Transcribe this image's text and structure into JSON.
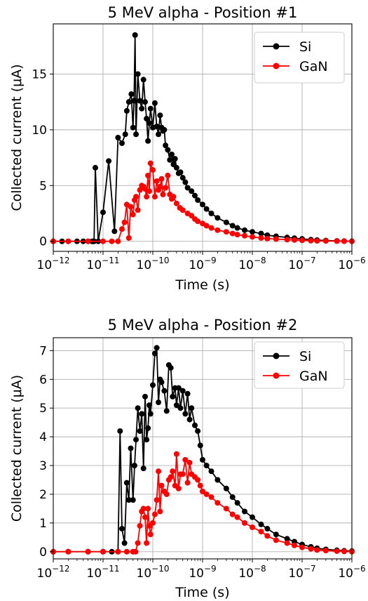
{
  "chart_data": [
    {
      "type": "line",
      "title": "5 MeV alpha - Position #1",
      "xlabel": "Time (s)",
      "ylabel": "Collected current (μA)",
      "xscale": "log",
      "xlim": [
        1e-12,
        1e-06
      ],
      "ylim": [
        -0.9,
        19.5
      ],
      "x_ticks": [
        {
          "base": "10",
          "exp": "−12"
        },
        {
          "base": "10",
          "exp": "−11"
        },
        {
          "base": "10",
          "exp": "−10"
        },
        {
          "base": "10",
          "exp": "−9"
        },
        {
          "base": "10",
          "exp": "−8"
        },
        {
          "base": "10",
          "exp": "−7"
        },
        {
          "base": "10",
          "exp": "−6"
        }
      ],
      "y_ticks": [
        "0",
        "5",
        "10",
        "15"
      ],
      "y_tick_values": [
        0,
        5,
        10,
        15
      ],
      "grid": true,
      "legend_position": "top-right",
      "series": [
        {
          "name": "Si",
          "color": "#000000",
          "x": [
            1e-12,
            1.5e-12,
            2e-12,
            3e-12,
            4e-12,
            5e-12,
            6e-12,
            6.3e-12,
            6.6e-12,
            7e-12,
            8e-12,
            1e-11,
            1.3e-11,
            1.7e-11,
            2e-11,
            2.4e-11,
            2.8e-11,
            3e-11,
            3.3e-11,
            3.7e-11,
            4e-11,
            4.2e-11,
            4.4e-11,
            4.6e-11,
            5e-11,
            5.5e-11,
            6e-11,
            6.5e-11,
            7e-11,
            7.5e-11,
            8e-11,
            8.5e-11,
            9e-11,
            1e-10,
            1.1e-10,
            1.2e-10,
            1.3e-10,
            1.4e-10,
            1.5e-10,
            1.6e-10,
            1.7e-10,
            1.8e-10,
            2e-10,
            2.2e-10,
            2.4e-10,
            2.6e-10,
            2.8e-10,
            3e-10,
            3.3e-10,
            3.6e-10,
            4e-10,
            4.5e-10,
            5e-10,
            6e-10,
            7e-10,
            8e-10,
            1e-09,
            1.2e-09,
            1.5e-09,
            2e-09,
            3e-09,
            4e-09,
            5e-09,
            7e-09,
            1e-08,
            1.5e-08,
            2e-08,
            3e-08,
            5e-08,
            7e-08,
            1e-07,
            1.5e-07,
            2e-07,
            3e-07,
            5e-07,
            7e-07,
            1e-06
          ],
          "y": [
            0,
            0,
            0,
            0,
            0,
            0,
            0,
            0,
            0,
            6.6,
            0,
            2.6,
            7.2,
            0.9,
            9.3,
            8.8,
            9.6,
            11.7,
            12.5,
            13.2,
            10.2,
            12.6,
            18.5,
            9.6,
            15.0,
            12.6,
            11.9,
            14.5,
            12.5,
            11.0,
            9.0,
            10.6,
            11.9,
            10.2,
            12.4,
            10.3,
            9.6,
            11.3,
            10.2,
            9.9,
            10.0,
            8.6,
            8.2,
            7.3,
            7.8,
            6.9,
            7.4,
            6.6,
            6.1,
            6.2,
            5.7,
            5.3,
            4.8,
            4.5,
            4.1,
            3.7,
            3.3,
            2.9,
            2.5,
            2.1,
            1.7,
            1.4,
            1.2,
            1.0,
            0.85,
            0.7,
            0.55,
            0.45,
            0.35,
            0.28,
            0.22,
            0.15,
            0.11,
            0.07,
            0.04,
            0.02,
            0.01
          ]
        },
        {
          "name": "GaN",
          "color": "#ff0000",
          "x": [
            1e-12,
            2e-12,
            5e-12,
            1e-11,
            1.5e-11,
            2e-11,
            2.4e-11,
            2.7e-11,
            3e-11,
            3.3e-11,
            3.6e-11,
            4e-11,
            4.3e-11,
            4.6e-11,
            5e-11,
            5.5e-11,
            6e-11,
            6.5e-11,
            7e-11,
            7.5e-11,
            8e-11,
            8.5e-11,
            9e-11,
            1e-10,
            1.1e-10,
            1.2e-10,
            1.3e-10,
            1.4e-10,
            1.5e-10,
            1.6e-10,
            1.8e-10,
            2e-10,
            2.2e-10,
            2.4e-10,
            2.6e-10,
            3e-10,
            3.5e-10,
            4e-10,
            5e-10,
            6e-10,
            7e-10,
            8e-10,
            1e-09,
            1.2e-09,
            1.5e-09,
            2e-09,
            3e-09,
            4e-09,
            5e-09,
            7e-09,
            1e-08,
            1.5e-08,
            2e-08,
            3e-08,
            5e-08,
            7e-08,
            1e-07,
            1.5e-07,
            2e-07,
            3e-07,
            5e-07,
            7e-07,
            1e-06
          ],
          "y": [
            0,
            0,
            0,
            0,
            0,
            0,
            1.1,
            1.7,
            3.3,
            0.3,
            3.1,
            2.4,
            3.7,
            4.0,
            2.8,
            4.6,
            5.0,
            4.9,
            4.7,
            4.0,
            5.9,
            4.5,
            7.0,
            6.4,
            4.0,
            5.4,
            4.6,
            4.9,
            5.6,
            4.2,
            4.8,
            5.9,
            4.2,
            3.8,
            4.0,
            3.4,
            3.0,
            2.8,
            2.5,
            2.3,
            2.0,
            1.8,
            1.6,
            1.4,
            1.2,
            1.0,
            0.85,
            0.7,
            0.6,
            0.5,
            0.4,
            0.3,
            0.25,
            0.2,
            0.15,
            0.12,
            0.09,
            0.06,
            0.04,
            0.03,
            0.02,
            0.01,
            0.0
          ]
        }
      ]
    },
    {
      "type": "line",
      "title": "5 MeV alpha - Position #2",
      "xlabel": "Time (s)",
      "ylabel": "Collected current (μA)",
      "xscale": "log",
      "xlim": [
        1e-12,
        1e-06
      ],
      "ylim": [
        -0.25,
        7.45
      ],
      "x_ticks": [
        {
          "base": "10",
          "exp": "−12"
        },
        {
          "base": "10",
          "exp": "−11"
        },
        {
          "base": "10",
          "exp": "−10"
        },
        {
          "base": "10",
          "exp": "−9"
        },
        {
          "base": "10",
          "exp": "−8"
        },
        {
          "base": "10",
          "exp": "−7"
        },
        {
          "base": "10",
          "exp": "−6"
        }
      ],
      "y_ticks": [
        "0",
        "1",
        "2",
        "3",
        "4",
        "5",
        "6",
        "7"
      ],
      "y_tick_values": [
        0,
        1,
        2,
        3,
        4,
        5,
        6,
        7
      ],
      "grid": true,
      "legend_position": "top-right",
      "series": [
        {
          "name": "Si",
          "color": "#000000",
          "x": [
            1e-12,
            2e-12,
            5e-12,
            1e-11,
            1.5e-11,
            2e-11,
            2.2e-11,
            2.4e-11,
            2.7e-11,
            3e-11,
            3.3e-11,
            3.6e-11,
            4e-11,
            4.3e-11,
            4.6e-11,
            5e-11,
            5.5e-11,
            6e-11,
            6.5e-11,
            7e-11,
            7.5e-11,
            8e-11,
            8.5e-11,
            9e-11,
            1e-10,
            1.1e-10,
            1.2e-10,
            1.3e-10,
            1.4e-10,
            1.5e-10,
            1.7e-10,
            1.9e-10,
            2.1e-10,
            2.3e-10,
            2.5e-10,
            2.8e-10,
            3e-10,
            3.3e-10,
            3.6e-10,
            4e-10,
            4.5e-10,
            5e-10,
            5.5e-10,
            6e-10,
            7e-10,
            8e-10,
            9e-10,
            1e-09,
            1.2e-09,
            1.5e-09,
            2e-09,
            3e-09,
            4e-09,
            5e-09,
            7e-09,
            1e-08,
            1.5e-08,
            2e-08,
            3e-08,
            5e-08,
            7e-08,
            1e-07,
            1.5e-07,
            2e-07,
            3e-07,
            5e-07,
            7e-07,
            1e-06
          ],
          "y": [
            0,
            0,
            0,
            0,
            0,
            0,
            4.2,
            0.8,
            0.3,
            2.4,
            1.8,
            3.6,
            1.8,
            3.0,
            3.9,
            5.0,
            4.2,
            4.8,
            2.9,
            5.4,
            3.9,
            4.3,
            5.1,
            4.8,
            5.8,
            6.9,
            7.1,
            5.2,
            6.0,
            5.9,
            5.6,
            4.9,
            6.5,
            6.4,
            5.4,
            5.7,
            5.1,
            5.7,
            5.0,
            5.6,
            4.8,
            5.5,
            4.6,
            5.0,
            4.4,
            4.2,
            3.7,
            3.2,
            3.0,
            2.8,
            2.5,
            2.2,
            1.9,
            1.7,
            1.4,
            1.2,
            0.95,
            0.8,
            0.6,
            0.45,
            0.35,
            0.25,
            0.17,
            0.12,
            0.08,
            0.05,
            0.03,
            0.02
          ]
        },
        {
          "name": "GaN",
          "color": "#ff0000",
          "x": [
            1e-12,
            2e-12,
            5e-12,
            1e-11,
            2e-11,
            3e-11,
            4e-11,
            4.5e-11,
            5e-11,
            5.5e-11,
            6e-11,
            6.5e-11,
            7e-11,
            7.5e-11,
            8e-11,
            8.5e-11,
            9e-11,
            1e-10,
            1.1e-10,
            1.2e-10,
            1.3e-10,
            1.4e-10,
            1.5e-10,
            1.7e-10,
            1.9e-10,
            2.1e-10,
            2.3e-10,
            2.5e-10,
            2.8e-10,
            3e-10,
            3.3e-10,
            3.6e-10,
            4e-10,
            4.5e-10,
            5e-10,
            5.5e-10,
            6e-10,
            7e-10,
            8e-10,
            9e-10,
            1e-09,
            1.2e-09,
            1.5e-09,
            2e-09,
            3e-09,
            4e-09,
            5e-09,
            7e-09,
            1e-08,
            1.5e-08,
            2e-08,
            3e-08,
            5e-08,
            7e-08,
            1e-07,
            1.5e-07,
            2e-07,
            3e-07,
            5e-07,
            7e-07,
            1e-06
          ],
          "y": [
            0,
            0,
            0,
            0,
            0,
            0,
            0,
            0,
            0.3,
            0.9,
            1.4,
            1.5,
            1.2,
            0.3,
            1.5,
            0.9,
            0.6,
            1.0,
            1.3,
            1.8,
            2.8,
            1.4,
            2.3,
            2.1,
            2.0,
            2.5,
            2.6,
            2.8,
            2.3,
            3.4,
            2.2,
            2.7,
            2.7,
            3.2,
            2.4,
            3.1,
            2.7,
            2.6,
            2.5,
            2.3,
            2.1,
            2.0,
            1.9,
            1.7,
            1.5,
            1.3,
            1.2,
            1.0,
            0.85,
            0.7,
            0.55,
            0.4,
            0.3,
            0.22,
            0.15,
            0.1,
            0.06,
            0.04,
            0.02,
            0.01,
            0.0
          ]
        }
      ]
    }
  ]
}
